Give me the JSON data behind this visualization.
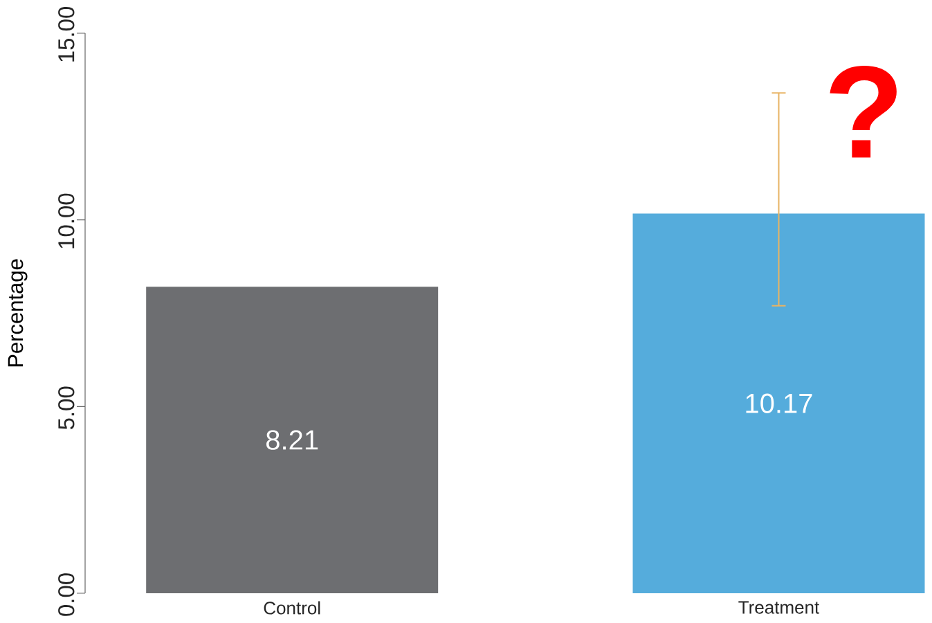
{
  "chart_data": {
    "type": "bar",
    "ylabel": "Percentage",
    "categories": [
      "Control",
      "Treatment"
    ],
    "values": [
      8.21,
      10.17
    ],
    "colors": [
      "#6d6e71",
      "#55acdc"
    ],
    "errors": [
      null,
      [
        7.7,
        13.4
      ]
    ],
    "data_labels": true,
    "ylim": [
      0,
      15
    ],
    "yticks": [
      {
        "value": 0,
        "label": "0.00"
      },
      {
        "value": 5,
        "label": "5.00"
      },
      {
        "value": 10,
        "label": "10.00"
      },
      {
        "value": 15,
        "label": "15.00"
      }
    ],
    "annotations": [
      "?"
    ]
  }
}
